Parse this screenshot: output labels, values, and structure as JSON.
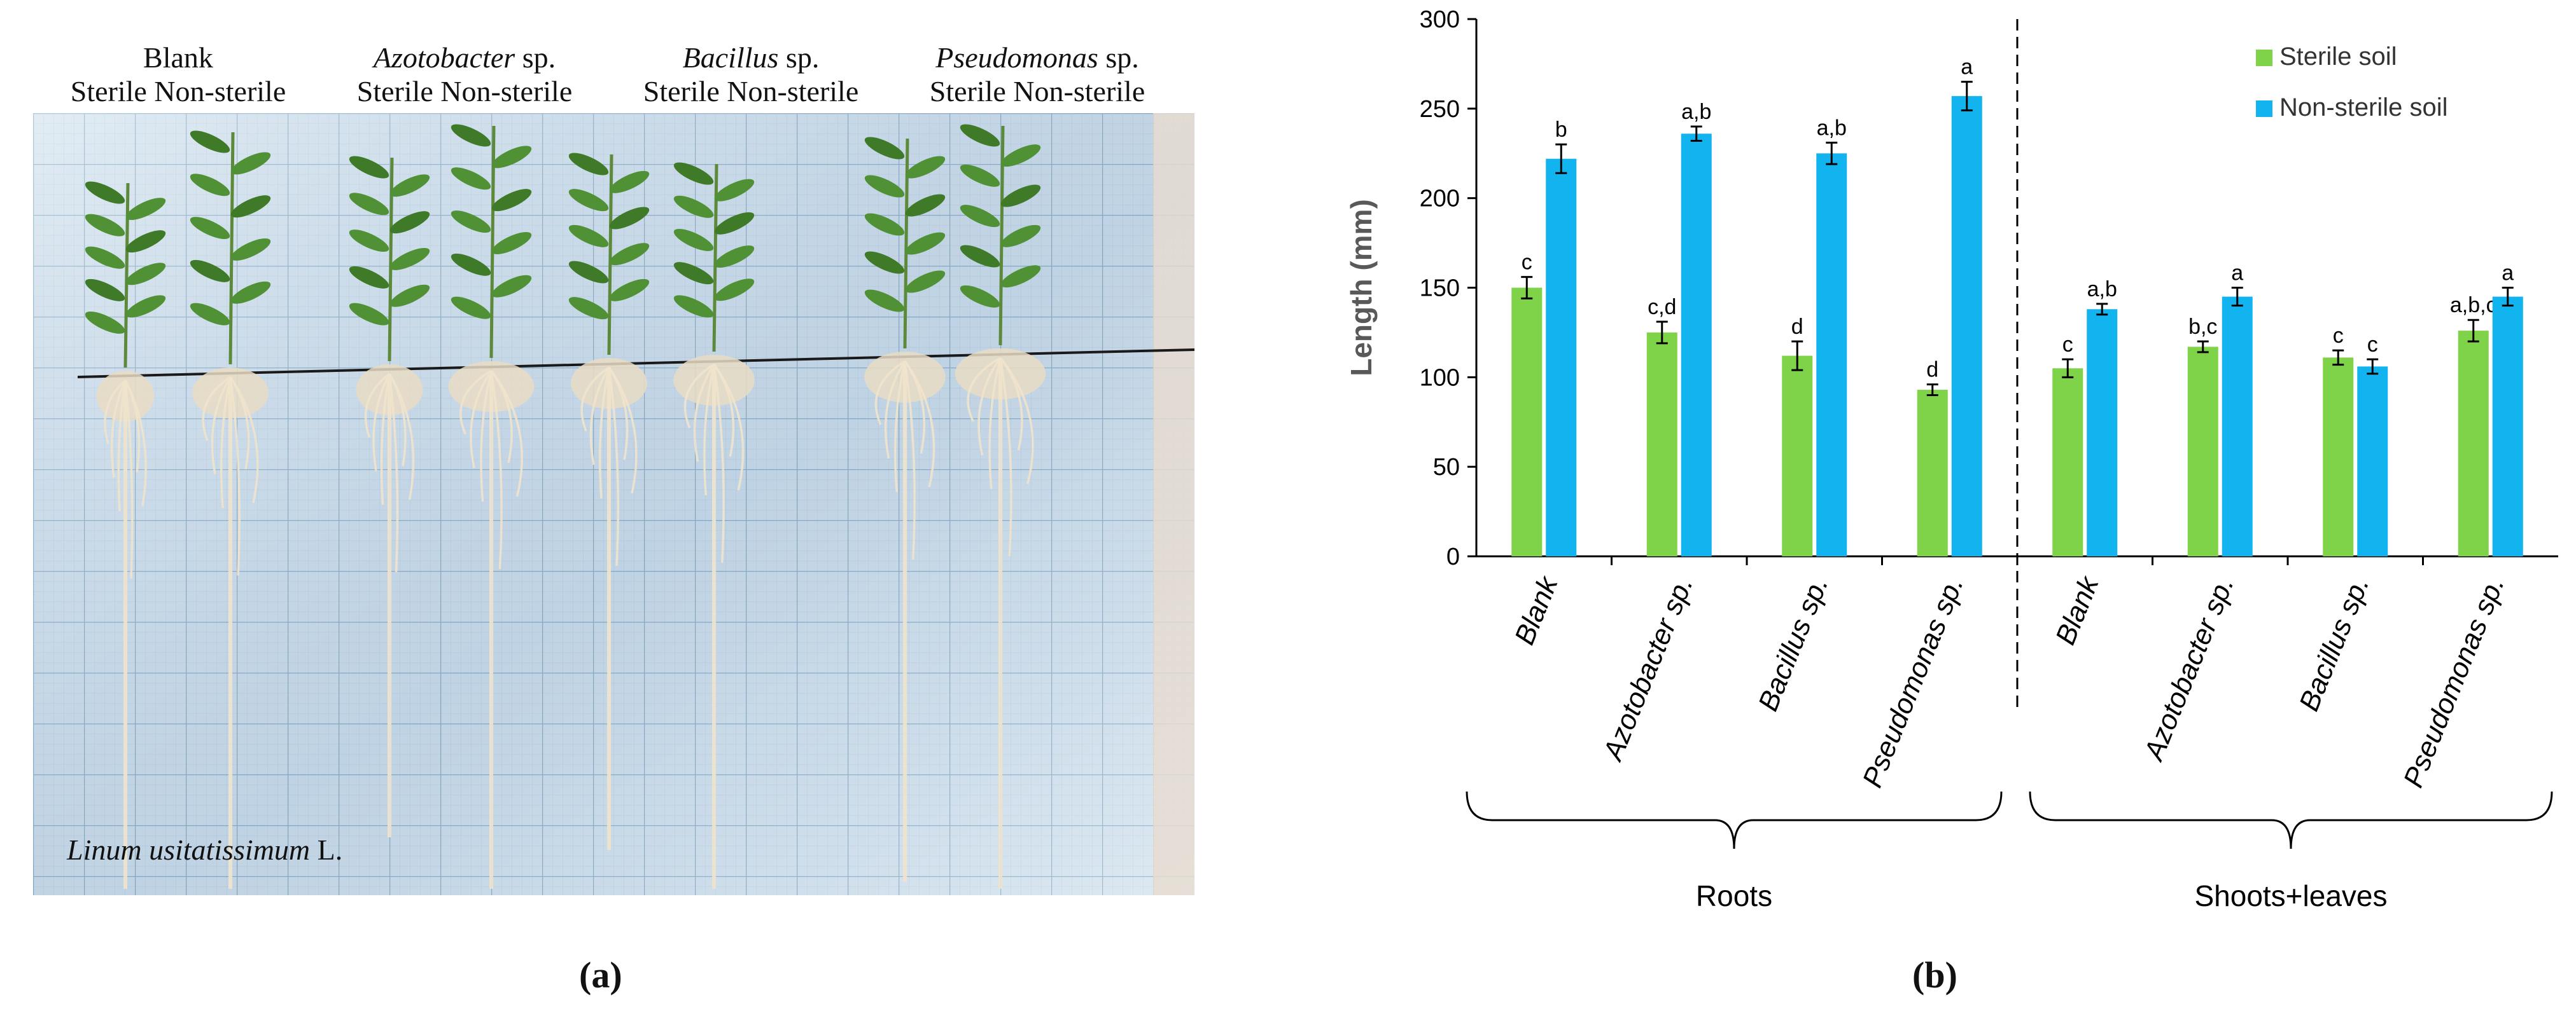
{
  "panel_a": {
    "columns": [
      {
        "title": "Blank",
        "italic": "",
        "suffix": "",
        "sub": "Sterile  Non-sterile"
      },
      {
        "title": "",
        "italic": "Azotobacter",
        "suffix": " sp.",
        "sub": "Sterile Non-sterile"
      },
      {
        "title": "",
        "italic": "Bacillus",
        "suffix": " sp.",
        "sub": "Sterile Non-sterile"
      },
      {
        "title": "",
        "italic": "Pseudomonas",
        "suffix": " sp.",
        "sub": "Sterile Non-sterile"
      }
    ],
    "caption_italic": "Linum usitatissimum",
    "caption_suffix": " L.",
    "letter": "(a)"
  },
  "panel_b": {
    "letter": "(b)"
  },
  "colors": {
    "sterile": "#7ed348",
    "non_sterile": "#12b4f0",
    "grid_bg": "#cfe0ec",
    "grid_line": "#8fb3cc"
  },
  "chart_data": {
    "type": "bar",
    "ylabel": "Length  (mm)",
    "ylim": [
      0,
      300
    ],
    "yticks": [
      0,
      50,
      100,
      150,
      200,
      250,
      300
    ],
    "legend_position": "top-right",
    "groups": [
      {
        "label": "Roots",
        "categories": [
          "Blank",
          "Azotobacter sp.",
          "Bacillus sp.",
          "Pseudomonas sp."
        ],
        "series": [
          {
            "name": "Sterile soil",
            "values": [
              150,
              125,
              112,
              93
            ],
            "errors": [
              6,
              6,
              8,
              3
            ],
            "letters": [
              "c",
              "c,d",
              "d",
              "d"
            ]
          },
          {
            "name": "Non-sterile soil",
            "values": [
              222,
              236,
              225,
              257
            ],
            "errors": [
              8,
              4,
              6,
              8
            ],
            "letters": [
              "b",
              "a,b",
              "a,b",
              "a"
            ]
          }
        ]
      },
      {
        "label": "Shoots+leaves",
        "categories": [
          "Blank",
          "Azotobacter sp.",
          "Bacillus sp.",
          "Pseudomonas sp."
        ],
        "series": [
          {
            "name": "Sterile soil",
            "values": [
              105,
              117,
              111,
              126
            ],
            "errors": [
              5,
              3,
              4,
              6
            ],
            "letters": [
              "c",
              "b,c",
              "c",
              "a,b,c"
            ]
          },
          {
            "name": "Non-sterile soil",
            "values": [
              138,
              145,
              106,
              145
            ],
            "errors": [
              3,
              5,
              4,
              5
            ],
            "letters": [
              "a,b",
              "a",
              "c",
              "a"
            ]
          }
        ]
      }
    ]
  }
}
